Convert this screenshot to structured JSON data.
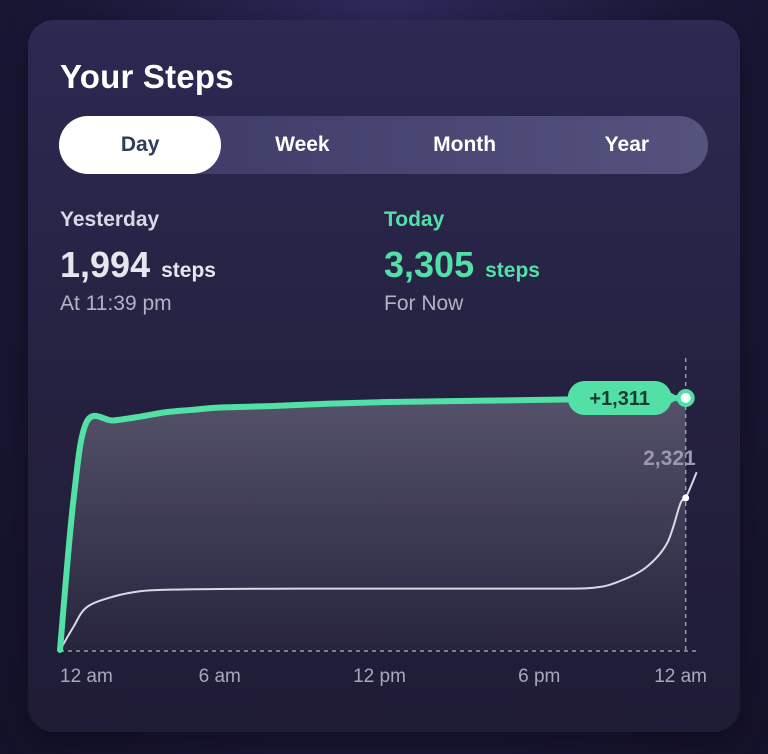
{
  "card": {
    "title": "Your Steps"
  },
  "tabs": [
    {
      "label": "Day",
      "active": true
    },
    {
      "label": "Week",
      "active": false
    },
    {
      "label": "Month",
      "active": false
    },
    {
      "label": "Year",
      "active": false
    }
  ],
  "yesterday": {
    "label": "Yesterday",
    "value": "1,994",
    "unit": "steps",
    "sub": "At 11:39 pm"
  },
  "today": {
    "label": "Today",
    "value": "3,305",
    "unit": "steps",
    "sub": "For Now"
  },
  "colors": {
    "today": "#52e0a6",
    "yesterday": "#d9d8e6",
    "axis": "#9a98b4"
  },
  "chart_data": {
    "type": "line",
    "x_ticks": [
      "12 am",
      "6 am",
      "12 pm",
      "6 pm",
      "12 am"
    ],
    "x_range_hours": [
      0,
      24
    ],
    "y_range_steps": [
      0,
      3305
    ],
    "difference_label": "+1,311",
    "yesterday_marker_label": "2,321",
    "series": [
      {
        "key": "today",
        "points": [
          [
            0,
            0
          ],
          [
            0.5,
            1950
          ],
          [
            1,
            2990
          ],
          [
            2,
            3010
          ],
          [
            3,
            3060
          ],
          [
            4,
            3120
          ],
          [
            5,
            3150
          ],
          [
            6,
            3180
          ],
          [
            8,
            3200
          ],
          [
            10,
            3230
          ],
          [
            12,
            3250
          ],
          [
            14,
            3260
          ],
          [
            16,
            3270
          ],
          [
            18,
            3280
          ],
          [
            20,
            3290
          ],
          [
            22,
            3300
          ],
          [
            23.5,
            3305
          ]
        ]
      },
      {
        "key": "yesterday",
        "points": [
          [
            0,
            0
          ],
          [
            0.5,
            300
          ],
          [
            1,
            560
          ],
          [
            2,
            700
          ],
          [
            3,
            770
          ],
          [
            4,
            790
          ],
          [
            6,
            800
          ],
          [
            9,
            805
          ],
          [
            12,
            805
          ],
          [
            15,
            805
          ],
          [
            18,
            805
          ],
          [
            20,
            815
          ],
          [
            21,
            900
          ],
          [
            22,
            1080
          ],
          [
            22.8,
            1400
          ],
          [
            23.3,
            1920
          ],
          [
            23.5,
            1994
          ],
          [
            23.9,
            2321
          ]
        ]
      }
    ]
  }
}
